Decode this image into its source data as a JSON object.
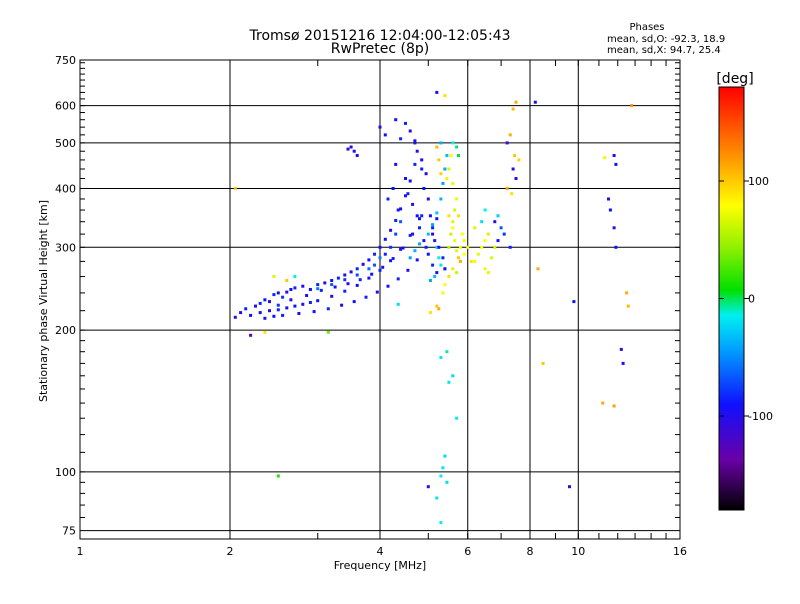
{
  "chart_data": {
    "type": "scatter",
    "title": "Tromsø 20151216 12:04:00-12:05:43",
    "subtitle": "RwPretec (8p)",
    "xlabel": "Frequency [MHz]",
    "ylabel": "Stationary phase Virtual Height [km]",
    "x_scale": "log",
    "y_scale": "log",
    "xlim": [
      1,
      16
    ],
    "ylim": [
      72,
      750
    ],
    "x_ticks": [
      1,
      2,
      4,
      6,
      8,
      10,
      16
    ],
    "x_tick_labels": [
      "1",
      "2",
      "4",
      "6",
      "8",
      "10",
      "16"
    ],
    "y_ticks": [
      75,
      100,
      200,
      300,
      400,
      500,
      600,
      750
    ],
    "y_tick_labels": [
      "75",
      "100",
      "200",
      "300",
      "400",
      "500",
      "600",
      "750"
    ],
    "grid": true,
    "stats": {
      "heading": "Phases",
      "line_o": "mean, sd,O: -92.3, 18.9",
      "line_x": "mean, sd,X:  94.7, 25.4"
    },
    "colorbar": {
      "label": "[deg]",
      "range": [
        -180,
        180
      ],
      "ticks": [
        100,
        0,
        -100
      ],
      "tick_labels": [
        "100",
        "0",
        "-100"
      ]
    },
    "points": [
      [
        2.05,
        213,
        -110
      ],
      [
        2.1,
        218,
        -110
      ],
      [
        2.15,
        222,
        -95
      ],
      [
        2.2,
        195,
        -140
      ],
      [
        2.25,
        225,
        -110
      ],
      [
        2.3,
        228,
        -95
      ],
      [
        2.35,
        232,
        -100
      ],
      [
        2.4,
        230,
        -110
      ],
      [
        2.45,
        238,
        -95
      ],
      [
        2.5,
        240,
        -100
      ],
      [
        2.55,
        235,
        -90
      ],
      [
        2.6,
        241,
        -110
      ],
      [
        2.65,
        244,
        -100
      ],
      [
        2.7,
        246,
        -95
      ],
      [
        2.8,
        248,
        -110
      ],
      [
        2.9,
        244,
        -100
      ],
      [
        3.0,
        250,
        -95
      ],
      [
        3.1,
        252,
        -110
      ],
      [
        3.2,
        255,
        -100
      ],
      [
        3.3,
        258,
        -95
      ],
      [
        3.4,
        262,
        -110
      ],
      [
        3.5,
        266,
        -100
      ],
      [
        3.6,
        270,
        -95
      ],
      [
        3.7,
        276,
        -110
      ],
      [
        3.8,
        282,
        -100
      ],
      [
        3.9,
        290,
        -95
      ],
      [
        4.0,
        300,
        -105
      ],
      [
        4.1,
        312,
        -100
      ],
      [
        4.2,
        326,
        -110
      ],
      [
        4.3,
        342,
        -95
      ],
      [
        4.4,
        362,
        -100
      ],
      [
        4.5,
        386,
        -110
      ],
      [
        4.6,
        415,
        -100
      ],
      [
        4.7,
        450,
        -95
      ],
      [
        4.75,
        480,
        -110
      ],
      [
        2.3,
        218,
        -100
      ],
      [
        2.4,
        220,
        -110
      ],
      [
        2.5,
        221,
        -95
      ],
      [
        2.6,
        223,
        -105
      ],
      [
        2.7,
        225,
        -100
      ],
      [
        2.8,
        227,
        -110
      ],
      [
        2.9,
        229,
        -95
      ],
      [
        3.0,
        231,
        -100
      ],
      [
        3.2,
        236,
        -110
      ],
      [
        3.4,
        242,
        -95
      ],
      [
        3.6,
        249,
        -100
      ],
      [
        3.8,
        258,
        -110
      ],
      [
        4.0,
        268,
        -95
      ],
      [
        4.2,
        281,
        -100
      ],
      [
        4.4,
        297,
        -110
      ],
      [
        4.6,
        318,
        -95
      ],
      [
        4.8,
        345,
        -100
      ],
      [
        5.0,
        380,
        -110
      ],
      [
        2.35,
        212,
        -110
      ],
      [
        2.45,
        214,
        -100
      ],
      [
        2.55,
        215,
        -95
      ],
      [
        2.75,
        217,
        -110
      ],
      [
        2.95,
        219,
        -100
      ],
      [
        3.15,
        222,
        -95
      ],
      [
        3.35,
        226,
        -110
      ],
      [
        3.55,
        230,
        -100
      ],
      [
        3.75,
        235,
        -95
      ],
      [
        3.95,
        241,
        -110
      ],
      [
        4.15,
        248,
        -100
      ],
      [
        4.35,
        257,
        -95
      ],
      [
        4.55,
        268,
        -110
      ],
      [
        4.75,
        282,
        -100
      ],
      [
        4.95,
        300,
        -95
      ],
      [
        5.1,
        320,
        -110
      ],
      [
        5.2,
        345,
        -100
      ],
      [
        2.2,
        215,
        -100
      ],
      [
        2.5,
        226,
        -90
      ],
      [
        2.65,
        232,
        -100
      ],
      [
        2.85,
        237,
        -110
      ],
      [
        3.05,
        243,
        -95
      ],
      [
        3.25,
        247,
        -100
      ],
      [
        3.45,
        251,
        -110
      ],
      [
        3.65,
        256,
        -95
      ],
      [
        3.85,
        263,
        -100
      ],
      [
        4.05,
        272,
        -110
      ],
      [
        4.25,
        284,
        -95
      ],
      [
        4.45,
        299,
        -100
      ],
      [
        4.65,
        320,
        -110
      ],
      [
        4.85,
        350,
        -95
      ],
      [
        4.9,
        400,
        -100
      ],
      [
        4.95,
        430,
        -110
      ],
      [
        4.85,
        460,
        -100
      ],
      [
        4.7,
        500,
        -120
      ],
      [
        4.6,
        530,
        -110
      ],
      [
        4.5,
        420,
        -100
      ],
      [
        4.55,
        390,
        -95
      ],
      [
        4.65,
        370,
        -110
      ],
      [
        4.75,
        350,
        -100
      ],
      [
        4.8,
        330,
        -95
      ],
      [
        4.9,
        310,
        -110
      ],
      [
        5.0,
        290,
        -100
      ],
      [
        5.1,
        275,
        -95
      ],
      [
        5.2,
        265,
        -110
      ],
      [
        4.4,
        340,
        -80
      ],
      [
        4.3,
        320,
        -85
      ],
      [
        4.2,
        300,
        -90
      ],
      [
        4.1,
        290,
        -95
      ],
      [
        4.0,
        285,
        -70
      ],
      [
        3.9,
        275,
        -80
      ],
      [
        3.8,
        270,
        -75
      ],
      [
        3.6,
        262,
        -85
      ],
      [
        3.4,
        256,
        -90
      ],
      [
        3.2,
        250,
        -80
      ],
      [
        3.0,
        245,
        -70
      ],
      [
        4.6,
        285,
        -60
      ],
      [
        4.7,
        295,
        -50
      ],
      [
        4.8,
        305,
        -55
      ],
      [
        5.0,
        320,
        -45
      ],
      [
        5.1,
        335,
        -60
      ],
      [
        5.2,
        355,
        -40
      ],
      [
        5.3,
        380,
        -50
      ],
      [
        5.35,
        410,
        -60
      ],
      [
        5.4,
        440,
        -55
      ],
      [
        5.45,
        470,
        -45
      ],
      [
        5.3,
        500,
        -50
      ],
      [
        5.2,
        300,
        -30
      ],
      [
        5.25,
        285,
        -20
      ],
      [
        5.3,
        275,
        -25
      ],
      [
        5.4,
        270,
        -35
      ],
      [
        5.15,
        260,
        -45
      ],
      [
        5.05,
        255,
        -55
      ],
      [
        5.5,
        300,
        60
      ],
      [
        5.55,
        320,
        70
      ],
      [
        5.6,
        340,
        80
      ],
      [
        5.65,
        360,
        75
      ],
      [
        5.7,
        380,
        90
      ],
      [
        5.6,
        410,
        85
      ],
      [
        5.5,
        440,
        80
      ],
      [
        5.55,
        470,
        95
      ],
      [
        5.45,
        420,
        105
      ],
      [
        5.5,
        350,
        110
      ],
      [
        5.6,
        330,
        100
      ],
      [
        5.65,
        310,
        90
      ],
      [
        5.7,
        295,
        85
      ],
      [
        5.75,
        285,
        120
      ],
      [
        5.8,
        280,
        130
      ],
      [
        5.5,
        260,
        110
      ],
      [
        5.4,
        250,
        100
      ],
      [
        5.35,
        240,
        95
      ],
      [
        5.6,
        270,
        80
      ],
      [
        5.7,
        265,
        70
      ],
      [
        5.8,
        300,
        90
      ],
      [
        5.85,
        320,
        100
      ],
      [
        5.9,
        310,
        105
      ],
      [
        5.75,
        350,
        110
      ],
      [
        5.3,
        430,
        115
      ],
      [
        5.25,
        460,
        120
      ],
      [
        5.2,
        490,
        125
      ],
      [
        5.6,
        500,
        -20
      ],
      [
        5.7,
        490,
        -10
      ],
      [
        5.75,
        470,
        -5
      ],
      [
        6.2,
        280,
        90
      ],
      [
        6.3,
        290,
        85
      ],
      [
        6.4,
        300,
        95
      ],
      [
        6.5,
        310,
        100
      ],
      [
        6.6,
        320,
        110
      ],
      [
        6.7,
        285,
        80
      ],
      [
        6.8,
        300,
        70
      ],
      [
        6.5,
        270,
        90
      ],
      [
        6.6,
        265,
        85
      ],
      [
        6.4,
        340,
        -30
      ],
      [
        6.5,
        360,
        -20
      ],
      [
        6.9,
        350,
        -40
      ],
      [
        7.0,
        330,
        -80
      ],
      [
        7.1,
        320,
        -90
      ],
      [
        6.9,
        310,
        -100
      ],
      [
        6.8,
        340,
        -110
      ],
      [
        7.3,
        300,
        -95
      ],
      [
        7.5,
        420,
        -100
      ],
      [
        7.4,
        440,
        -110
      ],
      [
        7.2,
        500,
        -120
      ],
      [
        7.5,
        610,
        130
      ],
      [
        7.4,
        590,
        125
      ],
      [
        7.3,
        520,
        130
      ],
      [
        7.45,
        470,
        120
      ],
      [
        7.6,
        460,
        115
      ],
      [
        7.35,
        390,
        110
      ],
      [
        7.2,
        400,
        130
      ],
      [
        8.2,
        610,
        -100
      ],
      [
        5.2,
        640,
        -105
      ],
      [
        5.4,
        630,
        110
      ],
      [
        4.0,
        540,
        -110
      ],
      [
        4.1,
        520,
        -100
      ],
      [
        3.5,
        490,
        -110
      ],
      [
        3.55,
        480,
        -105
      ],
      [
        3.45,
        485,
        -120
      ],
      [
        3.6,
        470,
        -110
      ],
      [
        4.3,
        560,
        -100
      ],
      [
        4.5,
        550,
        -95
      ],
      [
        9.8,
        230,
        -100
      ],
      [
        11.8,
        470,
        -110
      ],
      [
        11.9,
        450,
        -100
      ],
      [
        11.5,
        380,
        -110
      ],
      [
        11.6,
        360,
        -100
      ],
      [
        11.8,
        330,
        -110
      ],
      [
        11.9,
        300,
        -100
      ],
      [
        12.2,
        182,
        -110
      ],
      [
        12.3,
        170,
        -100
      ],
      [
        12.5,
        240,
        130
      ],
      [
        12.6,
        225,
        125
      ],
      [
        12.8,
        600,
        140
      ],
      [
        8.5,
        170,
        120
      ],
      [
        8.3,
        270,
        130
      ],
      [
        11.2,
        140,
        130
      ],
      [
        11.8,
        138,
        135
      ],
      [
        11.3,
        465,
        90
      ],
      [
        5.3,
        175,
        -20
      ],
      [
        5.45,
        180,
        -15
      ],
      [
        5.6,
        160,
        -30
      ],
      [
        5.5,
        155,
        -25
      ],
      [
        5.7,
        130,
        -20
      ],
      [
        5.4,
        108,
        -30
      ],
      [
        5.35,
        102,
        -25
      ],
      [
        5.3,
        98,
        -20
      ],
      [
        5.45,
        95,
        -30
      ],
      [
        5.2,
        88,
        -25
      ],
      [
        5.3,
        78,
        -20
      ],
      [
        5.0,
        93,
        -110
      ],
      [
        9.6,
        93,
        -115
      ],
      [
        2.5,
        98,
        10
      ],
      [
        2.05,
        400,
        120
      ],
      [
        2.6,
        255,
        120
      ],
      [
        2.45,
        260,
        80
      ],
      [
        2.7,
        260,
        -20
      ],
      [
        3.15,
        198,
        30
      ],
      [
        2.35,
        198,
        110
      ],
      [
        4.35,
        227,
        -30
      ],
      [
        5.2,
        225,
        120
      ],
      [
        5.05,
        218,
        110
      ],
      [
        5.25,
        222,
        130
      ],
      [
        6.2,
        330,
        80
      ],
      [
        6.0,
        300,
        90
      ],
      [
        5.9,
        290,
        100
      ],
      [
        6.1,
        280,
        110
      ],
      [
        4.4,
        510,
        -95
      ],
      [
        4.7,
        505,
        -100
      ],
      [
        4.85,
        440,
        -95
      ],
      [
        4.3,
        450,
        -105
      ],
      [
        4.25,
        400,
        -100
      ],
      [
        4.15,
        380,
        -95
      ],
      [
        4.35,
        360,
        -110
      ],
      [
        5.05,
        350,
        -100
      ],
      [
        5.1,
        330,
        -95
      ],
      [
        5.15,
        310,
        -110
      ],
      [
        5.25,
        300,
        -100
      ],
      [
        5.35,
        285,
        -95
      ],
      [
        5.4,
        270,
        -105
      ]
    ]
  }
}
